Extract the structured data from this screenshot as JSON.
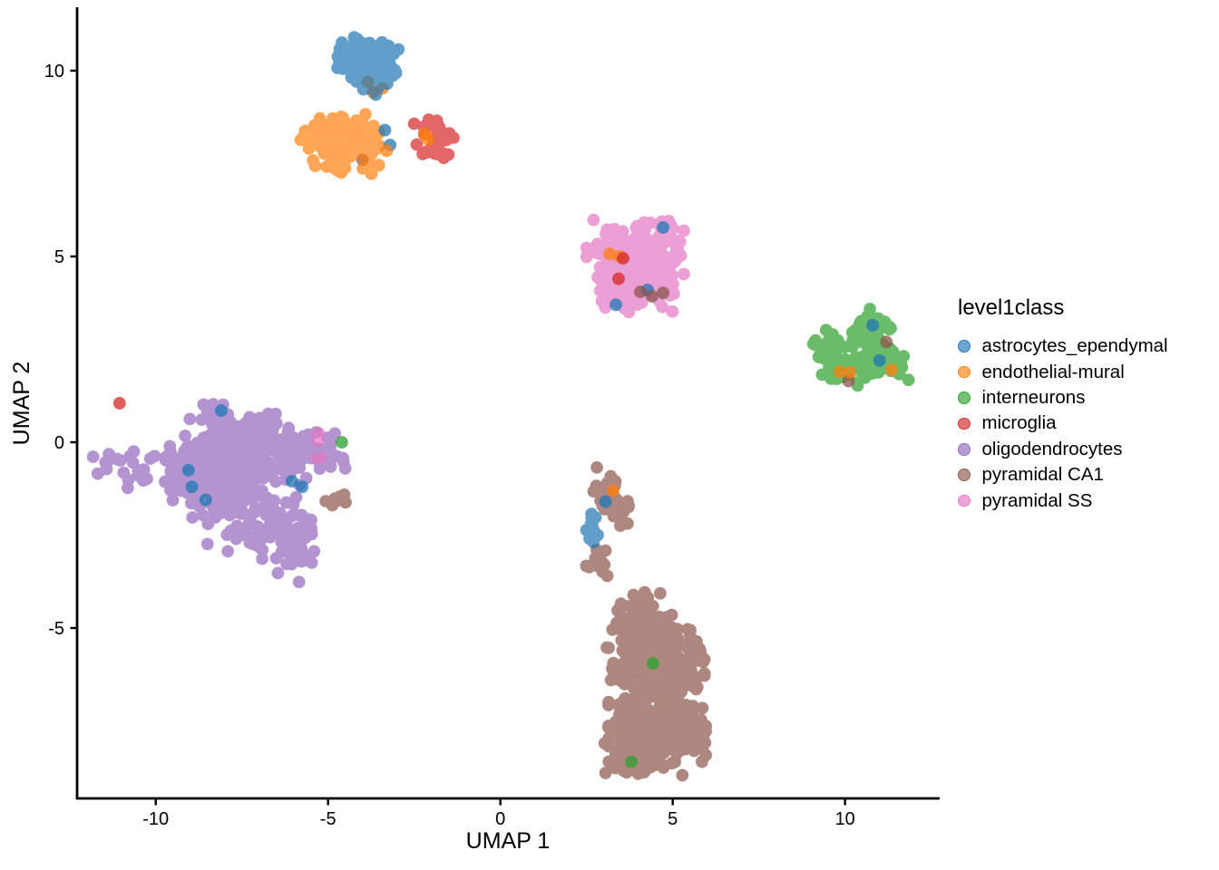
{
  "chart_data": {
    "type": "scatter",
    "title": "",
    "xlabel": "UMAP 1",
    "ylabel": "UMAP 2",
    "xlim": [
      -12.3,
      12.7
    ],
    "ylim": [
      -9.6,
      11.7
    ],
    "xticks": [
      -10,
      -5,
      0,
      5,
      10
    ],
    "yticks": [
      -5,
      0,
      5,
      10
    ],
    "grid": false,
    "legend_position": "right",
    "legend_title": "level1class",
    "point_radius": 6.8,
    "point_alpha": 0.7,
    "classes": [
      {
        "name": "astrocytes_ependymal",
        "color": "#1f77b4"
      },
      {
        "name": "endothelial-mural",
        "color": "#ff7f0e"
      },
      {
        "name": "interneurons",
        "color": "#2ca02c"
      },
      {
        "name": "microglia",
        "color": "#d62728"
      },
      {
        "name": "oligodendrocytes",
        "color": "#9467bd"
      },
      {
        "name": "pyramidal CA1",
        "color": "#8c564b"
      },
      {
        "name": "pyramidal SS",
        "color": "#e377c2"
      }
    ],
    "clusters": [
      {
        "class": "oligodendrocytes",
        "blobs": [
          {
            "cx": -7.7,
            "cy": -0.6,
            "sx": 0.85,
            "sy": 0.62,
            "n": 230
          },
          {
            "cx": -8.3,
            "cy": 0.55,
            "sx": 0.3,
            "sy": 0.3,
            "n": 25
          },
          {
            "cx": -7.0,
            "cy": 0.1,
            "sx": 0.45,
            "sy": 0.35,
            "n": 40
          },
          {
            "cx": -5.6,
            "cy": -0.35,
            "sx": 0.65,
            "sy": 0.28,
            "n": 55
          },
          {
            "cx": -6.9,
            "cy": -2.3,
            "sx": 0.75,
            "sy": 0.38,
            "n": 80
          },
          {
            "cx": -5.95,
            "cy": -3.0,
            "sx": 0.28,
            "sy": 0.35,
            "n": 25
          },
          {
            "cx": -8.6,
            "cy": -1.1,
            "sx": 0.45,
            "sy": 0.5,
            "n": 60
          },
          {
            "cx": -9.3,
            "cy": -0.6,
            "sx": 0.35,
            "sy": 0.35,
            "n": 30
          },
          {
            "cx": -11.25,
            "cy": -0.45,
            "sx": 0.28,
            "sy": 0.22,
            "n": 14
          },
          {
            "cx": -10.65,
            "cy": -0.95,
            "sx": 0.18,
            "sy": 0.15,
            "n": 7
          },
          {
            "cx": -10.1,
            "cy": -0.35,
            "sx": 0.05,
            "sy": 0.05,
            "n": 2
          }
        ]
      },
      {
        "class": "pyramidal SS",
        "blobs": [
          {
            "cx": 3.6,
            "cy": 4.9,
            "sx": 0.5,
            "sy": 0.5,
            "n": 150
          },
          {
            "cx": 4.4,
            "cy": 5.0,
            "sx": 0.42,
            "sy": 0.45,
            "n": 110
          },
          {
            "cx": 4.0,
            "cy": 4.15,
            "sx": 0.5,
            "sy": 0.33,
            "n": 70
          },
          {
            "cx": 4.85,
            "cy": 5.65,
            "sx": 0.18,
            "sy": 0.25,
            "n": 14
          },
          {
            "cx": 3.3,
            "cy": 3.95,
            "sx": 0.18,
            "sy": 0.18,
            "n": 10
          },
          {
            "cx": -5.3,
            "cy": 0.15,
            "sx": 0.07,
            "sy": 0.09,
            "n": 3
          },
          {
            "cx": -5.25,
            "cy": -0.45,
            "sx": 0.06,
            "sy": 0.06,
            "n": 2
          }
        ]
      },
      {
        "class": "pyramidal CA1",
        "blobs": [
          {
            "cx": 4.2,
            "cy": -4.7,
            "sx": 0.35,
            "sy": 0.3,
            "n": 45
          },
          {
            "cx": 4.3,
            "cy": -5.4,
            "sx": 0.55,
            "sy": 0.45,
            "n": 150
          },
          {
            "cx": 4.6,
            "cy": -6.4,
            "sx": 0.6,
            "sy": 0.55,
            "n": 200
          },
          {
            "cx": 4.5,
            "cy": -7.5,
            "sx": 0.62,
            "sy": 0.5,
            "n": 200
          },
          {
            "cx": 4.1,
            "cy": -8.3,
            "sx": 0.55,
            "sy": 0.3,
            "n": 90
          },
          {
            "cx": 5.3,
            "cy": -7.9,
            "sx": 0.3,
            "sy": 0.28,
            "n": 45
          },
          {
            "cx": 3.6,
            "cy": -8.55,
            "sx": 0.25,
            "sy": 0.18,
            "n": 25
          },
          {
            "cx": 3.1,
            "cy": -1.25,
            "sx": 0.22,
            "sy": 0.26,
            "n": 22
          },
          {
            "cx": 3.6,
            "cy": -1.85,
            "sx": 0.18,
            "sy": 0.18,
            "n": 10
          },
          {
            "cx": 2.85,
            "cy": -3.2,
            "sx": 0.22,
            "sy": 0.18,
            "n": 16
          },
          {
            "cx": -4.6,
            "cy": -1.55,
            "sx": 0.22,
            "sy": 0.1,
            "n": 8
          }
        ]
      },
      {
        "class": "astrocytes_ependymal",
        "blobs": [
          {
            "cx": -4.25,
            "cy": 10.45,
            "sx": 0.32,
            "sy": 0.25,
            "n": 45
          },
          {
            "cx": -3.55,
            "cy": 10.2,
            "sx": 0.35,
            "sy": 0.3,
            "n": 55
          },
          {
            "cx": -3.9,
            "cy": 9.75,
            "sx": 0.28,
            "sy": 0.22,
            "n": 22
          },
          {
            "cx": 2.65,
            "cy": -2.35,
            "sx": 0.1,
            "sy": 0.28,
            "n": 16
          }
        ]
      },
      {
        "class": "endothelial-mural",
        "blobs": [
          {
            "cx": -5.1,
            "cy": 8.2,
            "sx": 0.32,
            "sy": 0.28,
            "n": 40
          },
          {
            "cx": -4.45,
            "cy": 7.8,
            "sx": 0.42,
            "sy": 0.26,
            "n": 50
          },
          {
            "cx": -3.95,
            "cy": 8.3,
            "sx": 0.3,
            "sy": 0.24,
            "n": 30
          },
          {
            "cx": -4.6,
            "cy": 8.55,
            "sx": 0.2,
            "sy": 0.15,
            "n": 12
          }
        ]
      },
      {
        "class": "microglia",
        "blobs": [
          {
            "cx": -1.9,
            "cy": 8.2,
            "sx": 0.28,
            "sy": 0.22,
            "n": 28
          },
          {
            "cx": -1.95,
            "cy": 8.6,
            "sx": 0.08,
            "sy": 0.08,
            "n": 4
          },
          {
            "cx": -1.7,
            "cy": 7.8,
            "sx": 0.1,
            "sy": 0.12,
            "n": 5
          }
        ]
      },
      {
        "class": "interneurons",
        "blobs": [
          {
            "cx": 10.7,
            "cy": 2.85,
            "sx": 0.32,
            "sy": 0.28,
            "n": 40
          },
          {
            "cx": 10.0,
            "cy": 2.0,
            "sx": 0.38,
            "sy": 0.28,
            "n": 45
          },
          {
            "cx": 11.2,
            "cy": 2.1,
            "sx": 0.32,
            "sy": 0.24,
            "n": 35
          },
          {
            "cx": 9.6,
            "cy": 2.65,
            "sx": 0.24,
            "sy": 0.24,
            "n": 20
          },
          {
            "cx": 10.75,
            "cy": 3.3,
            "sx": 0.18,
            "sy": 0.15,
            "n": 10
          }
        ]
      }
    ],
    "outliers_under": [
      {
        "class": "endothelial-mural",
        "x": -3.85,
        "y": 9.7
      },
      {
        "class": "endothelial-mural",
        "x": -3.42,
        "y": 9.52
      },
      {
        "class": "endothelial-mural",
        "x": -3.7,
        "y": 9.42
      },
      {
        "class": "pyramidal CA1",
        "x": -4.0,
        "y": 7.6
      }
    ],
    "outliers_over": [
      {
        "class": "astrocytes_ependymal",
        "x": -3.35,
        "y": 8.4
      },
      {
        "class": "astrocytes_ependymal",
        "x": -3.2,
        "y": 8.0
      },
      {
        "class": "endothelial-mural",
        "x": -3.3,
        "y": 7.85
      },
      {
        "class": "endothelial-mural",
        "x": -2.2,
        "y": 8.3
      },
      {
        "class": "endothelial-mural",
        "x": -2.1,
        "y": 8.15
      },
      {
        "class": "endothelial-mural",
        "x": 3.17,
        "y": 5.07
      },
      {
        "class": "endothelial-mural",
        "x": 3.46,
        "y": 5.0
      },
      {
        "class": "microglia",
        "x": 3.56,
        "y": 4.95
      },
      {
        "class": "microglia",
        "x": 3.43,
        "y": 4.4
      },
      {
        "class": "astrocytes_ependymal",
        "x": 4.72,
        "y": 5.78
      },
      {
        "class": "astrocytes_ependymal",
        "x": 4.27,
        "y": 4.1
      },
      {
        "class": "astrocytes_ependymal",
        "x": 3.35,
        "y": 3.7
      },
      {
        "class": "pyramidal CA1",
        "x": 4.06,
        "y": 4.05
      },
      {
        "class": "pyramidal CA1",
        "x": 4.4,
        "y": 3.93
      },
      {
        "class": "pyramidal CA1",
        "x": 4.72,
        "y": 4.02
      },
      {
        "class": "astrocytes_ependymal",
        "x": 10.8,
        "y": 3.15
      },
      {
        "class": "astrocytes_ependymal",
        "x": 11.0,
        "y": 2.2
      },
      {
        "class": "pyramidal CA1",
        "x": 11.2,
        "y": 2.7
      },
      {
        "class": "pyramidal CA1",
        "x": 10.1,
        "y": 1.65
      },
      {
        "class": "endothelial-mural",
        "x": 9.85,
        "y": 1.9
      },
      {
        "class": "endothelial-mural",
        "x": 10.15,
        "y": 1.88
      },
      {
        "class": "endothelial-mural",
        "x": 11.35,
        "y": 1.95
      },
      {
        "class": "microglia",
        "x": -11.05,
        "y": 1.05
      },
      {
        "class": "astrocytes_ependymal",
        "x": -8.1,
        "y": 0.85
      },
      {
        "class": "astrocytes_ependymal",
        "x": -9.05,
        "y": -0.75
      },
      {
        "class": "astrocytes_ependymal",
        "x": -8.95,
        "y": -1.2
      },
      {
        "class": "astrocytes_ependymal",
        "x": -8.55,
        "y": -1.55
      },
      {
        "class": "astrocytes_ependymal",
        "x": -6.05,
        "y": -1.05
      },
      {
        "class": "astrocytes_ependymal",
        "x": -5.75,
        "y": -1.2
      },
      {
        "class": "interneurons",
        "x": -4.6,
        "y": 0.0
      },
      {
        "class": "endothelial-mural",
        "x": 3.27,
        "y": -1.3
      },
      {
        "class": "astrocytes_ependymal",
        "x": 3.05,
        "y": -1.6
      },
      {
        "class": "interneurons",
        "x": 4.43,
        "y": -5.95
      },
      {
        "class": "interneurons",
        "x": 3.8,
        "y": -8.6
      }
    ]
  }
}
